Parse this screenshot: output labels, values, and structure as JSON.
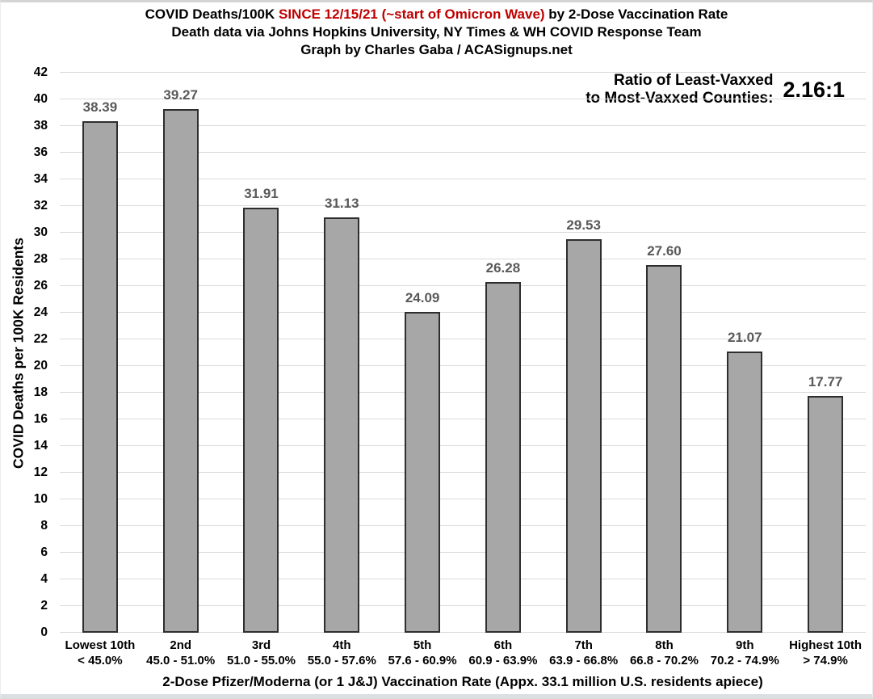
{
  "title": {
    "line1_part1": "COVID Deaths/100K ",
    "line1_highlight": "SINCE 12/15/21 (~start of Omicron Wave)",
    "line1_part3": " by 2-Dose Vaccination Rate",
    "line2": "Death data via Johns Hopkins University, NY Times & WH COVID Response Team",
    "line3": "Graph by Charles Gaba / ACASignups.net",
    "highlight_color": "#c00000"
  },
  "annotation": {
    "label_line1": "Ratio of Least-Vaxxed",
    "label_line2": "to Most-Vaxxed Counties:",
    "value": "2.16:1"
  },
  "chart_data": {
    "type": "bar",
    "title": "COVID Deaths/100K SINCE 12/15/21 (~start of Omicron Wave) by 2-Dose Vaccination Rate",
    "subtitle": "Death data via Johns Hopkins University, NY Times & WH COVID Response Team — Graph by Charles Gaba / ACASignups.net",
    "categories": [
      {
        "decile": "Lowest 10th",
        "range": "< 45.0%"
      },
      {
        "decile": "2nd",
        "range": "45.0 - 51.0%"
      },
      {
        "decile": "3rd",
        "range": "51.0 - 55.0%"
      },
      {
        "decile": "4th",
        "range": "55.0 - 57.6%"
      },
      {
        "decile": "5th",
        "range": "57.6 - 60.9%"
      },
      {
        "decile": "6th",
        "range": "60.9 - 63.9%"
      },
      {
        "decile": "7th",
        "range": "63.9 - 66.8%"
      },
      {
        "decile": "8th",
        "range": "66.8 - 70.2%"
      },
      {
        "decile": "9th",
        "range": "70.2 - 74.9%"
      },
      {
        "decile": "Highest 10th",
        "range": "> 74.9%"
      }
    ],
    "values": [
      38.39,
      39.27,
      31.91,
      31.13,
      24.09,
      26.28,
      29.53,
      27.6,
      21.07,
      17.77
    ],
    "xlabel": "2-Dose Pfizer/Moderna (or 1 J&J) Vaccination Rate (Appx. 33.1 million U.S. residents apiece)",
    "ylabel": "COVID Deaths per 100K Residents",
    "ylim": [
      0,
      42
    ],
    "ytick_step": 2,
    "grid": true,
    "legend": "none",
    "bar_color": "#a7a7a7",
    "bar_border_color": "#2e2e2e",
    "value_label_color": "#595959",
    "gridline_color": "#d9d9d9"
  }
}
